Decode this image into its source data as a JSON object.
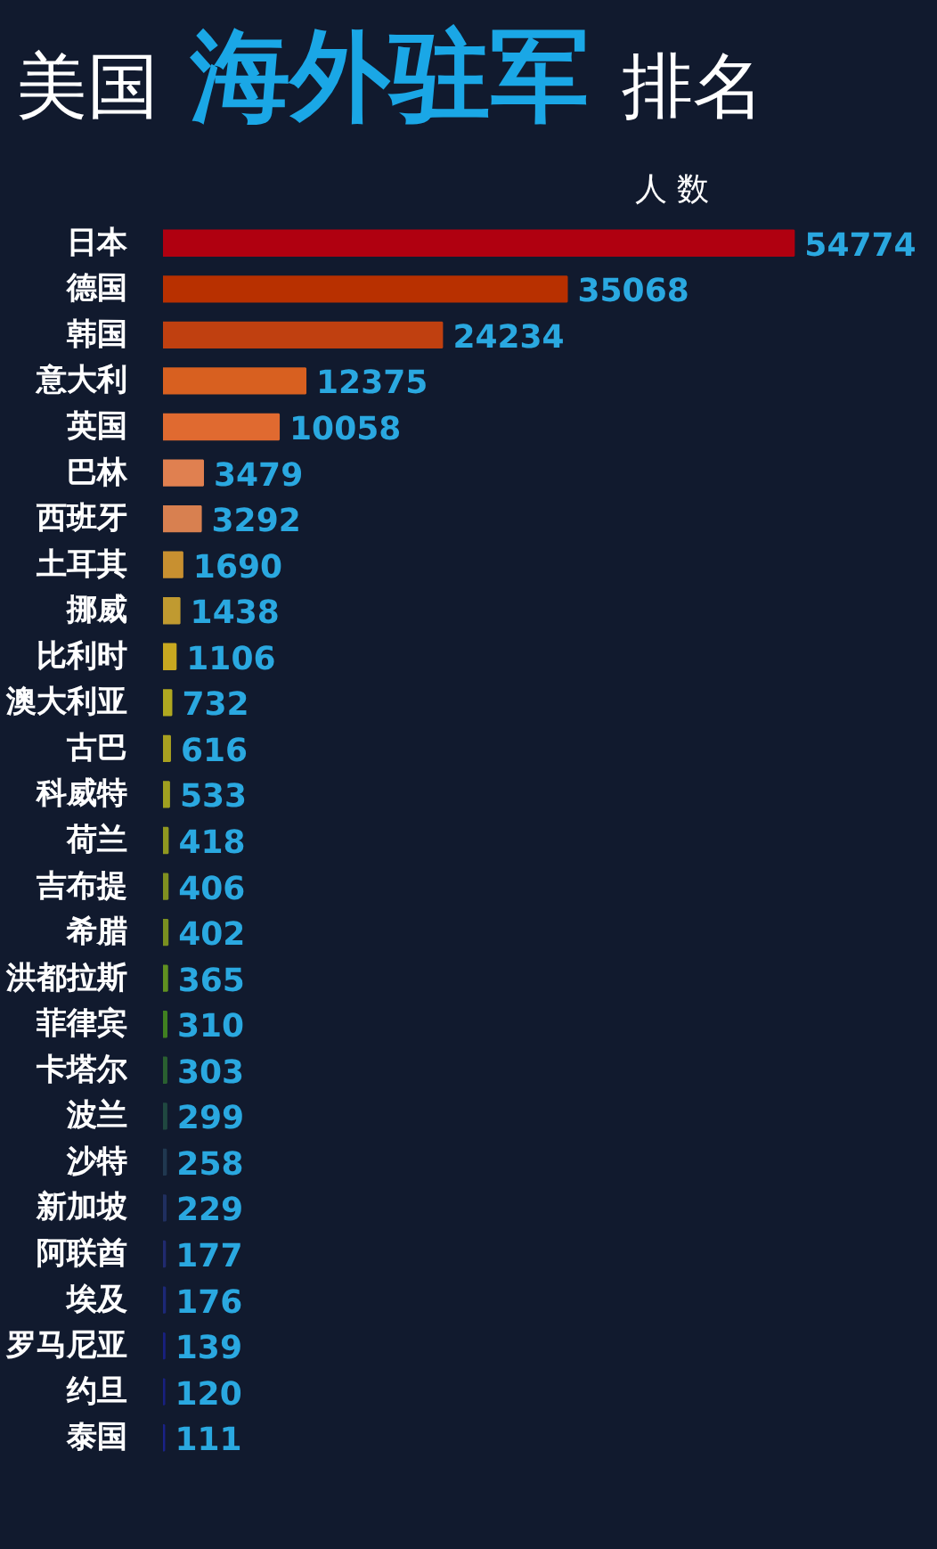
{
  "chart_data": {
    "type": "bar",
    "orientation": "horizontal",
    "title": "美国 海外驻军 排名",
    "xlabel": "人 数",
    "categories": [
      "日本",
      "德国",
      "韩国",
      "意大利",
      "英国",
      "巴林",
      "西班牙",
      "土耳其",
      "挪威",
      "比利时",
      "澳大利亚",
      "古巴",
      "科威特",
      "荷兰",
      "吉布提",
      "希腊",
      "洪都拉斯",
      "菲律宾",
      "卡塔尔",
      "波兰",
      "沙特",
      "新加坡",
      "阿联酋",
      "埃及",
      "罗马尼亚",
      "约旦",
      "泰国"
    ],
    "values": [
      54774,
      35068,
      24234,
      12375,
      10058,
      3479,
      3292,
      1690,
      1438,
      1106,
      732,
      616,
      533,
      418,
      406,
      402,
      365,
      310,
      303,
      299,
      258,
      229,
      177,
      176,
      139,
      120,
      111
    ],
    "colors": [
      "#b00010",
      "#b83000",
      "#c04010",
      "#d86020",
      "#e06a30",
      "#e08050",
      "#d88050",
      "#c89030",
      "#c09a30",
      "#c8a820",
      "#b0a820",
      "#a8a020",
      "#a0a020",
      "#909820",
      "#809020",
      "#7a9020",
      "#609020",
      "#408020",
      "#2a6030",
      "#204840",
      "#203850",
      "#202f60",
      "#202a70",
      "#1c2878",
      "#182080",
      "#182080",
      "#1a2288"
    ],
    "data_labels": true,
    "tick_labels": "y"
  }
}
